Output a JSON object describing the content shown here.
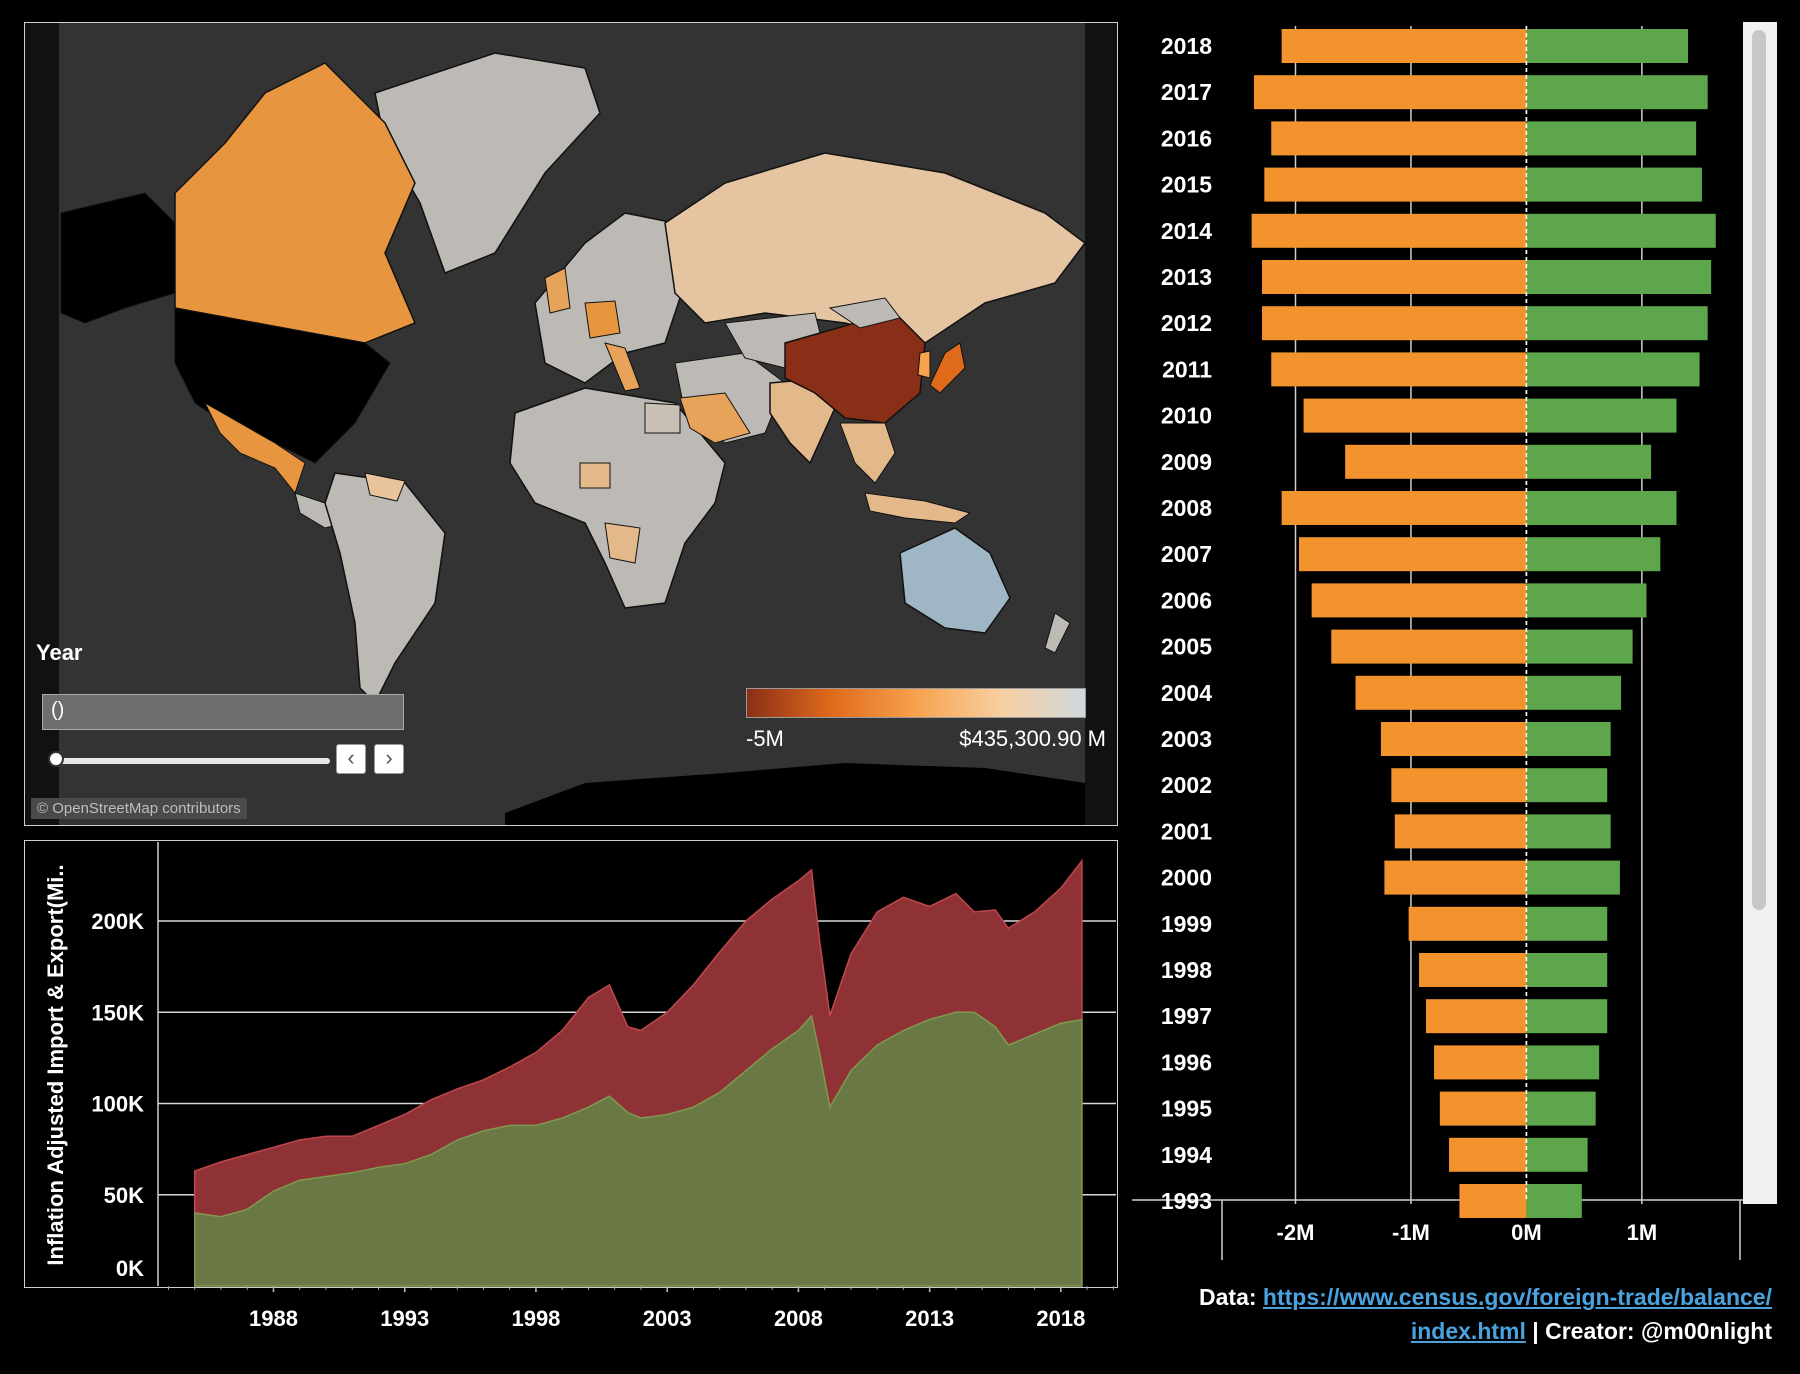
{
  "colors": {
    "export": "#5ea64b",
    "import": "#f2932e",
    "area_import": "#8f3236",
    "area_export": "#6a7845",
    "map_bg": "#333333",
    "china": "#8a2f17",
    "land_neutral": "#bdbab5"
  },
  "map": {
    "credit": "© OpenStreetMap contributors",
    "year_filter": {
      "label": "Year",
      "value": "()",
      "prev_icon": "chevron-left-icon",
      "next_icon": "chevron-right-icon"
    },
    "legend": {
      "min_label": "-5M",
      "max_label": "$435,300.90 M",
      "gradient": [
        "#8a2f17",
        "#e06a1c",
        "#f7a24d",
        "#f8cfa0",
        "#cfd8de"
      ]
    }
  },
  "footer": {
    "data_label": "Data:",
    "url_line1": "https://www.census.gov/foreign-trade/balance/",
    "url_line2": "index.html",
    "separator": "|",
    "creator": "Creator: @m00nlight"
  },
  "chart_data": [
    {
      "type": "bar",
      "orientation": "horizontal",
      "categories": [
        "2018",
        "2017",
        "2016",
        "2015",
        "2014",
        "2013",
        "2012",
        "2011",
        "2010",
        "2009",
        "2008",
        "2007",
        "2006",
        "2005",
        "2004",
        "2003",
        "2002",
        "2001",
        "2000",
        "1999",
        "1998",
        "1997",
        "1996",
        "1995",
        "1994",
        "1993"
      ],
      "series": [
        {
          "values": [
            -2.12,
            -2.36,
            -2.21,
            -2.27,
            -2.38,
            -2.29,
            -2.29,
            -2.21,
            -1.93,
            -1.57,
            -2.12,
            -1.97,
            -1.86,
            -1.69,
            -1.48,
            -1.26,
            -1.17,
            -1.14,
            -1.23,
            -1.02,
            -0.93,
            -0.87,
            -0.8,
            -0.75,
            -0.67,
            -0.58
          ]
        },
        {
          "values": [
            1.4,
            1.57,
            1.47,
            1.52,
            1.64,
            1.6,
            1.57,
            1.5,
            1.3,
            1.08,
            1.3,
            1.16,
            1.04,
            0.92,
            0.82,
            0.73,
            0.7,
            0.73,
            0.81,
            0.7,
            0.7,
            0.7,
            0.63,
            0.6,
            0.53,
            0.48
          ]
        }
      ],
      "xticks": [
        "-2M",
        "-1M",
        "0M",
        "1M"
      ],
      "xtick_values": [
        -2,
        -1,
        0,
        1
      ],
      "xlim": [
        -2.55,
        1.85
      ],
      "units": "M"
    },
    {
      "type": "area",
      "ylabel": "Inflation Adjusted Import & Export(Mi..",
      "yticks": [
        "0K",
        "50K",
        "100K",
        "150K",
        "200K"
      ],
      "ytick_values": [
        0,
        50000,
        100000,
        150000,
        200000
      ],
      "ylim": [
        0,
        240000
      ],
      "xticks": [
        "1988",
        "1993",
        "1998",
        "2003",
        "2008",
        "2013",
        "2018"
      ],
      "xtick_values": [
        1988,
        1993,
        1998,
        2003,
        2008,
        2013,
        2018
      ],
      "xlim": [
        1983.6,
        2020.1
      ],
      "x": [
        1985.0,
        1986.0,
        1987.0,
        1988.0,
        1989.0,
        1990.0,
        1991.0,
        1992.0,
        1993.0,
        1994.0,
        1995.0,
        1996.0,
        1997.0,
        1998.0,
        1999.0,
        2000.0,
        2000.8,
        2001.5,
        2002.0,
        2003.0,
        2004.0,
        2005.0,
        2006.0,
        2007.0,
        2008.0,
        2008.5,
        2008.8,
        2009.2,
        2010.0,
        2011.0,
        2012.0,
        2013.0,
        2014.0,
        2014.7,
        2015.5,
        2016.0,
        2017.0,
        2018.0,
        2018.8
      ],
      "series": [
        {
          "values": [
            63000,
            68000,
            72000,
            76000,
            80000,
            82000,
            82000,
            88000,
            94000,
            102000,
            108000,
            113000,
            120000,
            128000,
            140000,
            158000,
            165000,
            142000,
            140000,
            150000,
            165000,
            183000,
            200000,
            212000,
            222000,
            228000,
            190000,
            148000,
            182000,
            205000,
            213000,
            208000,
            215000,
            205000,
            206000,
            196000,
            205000,
            218000,
            233000
          ]
        },
        {
          "values": [
            40000,
            38000,
            42000,
            52000,
            58000,
            60000,
            62000,
            65000,
            67000,
            72000,
            80000,
            85000,
            88000,
            88000,
            92000,
            98000,
            104000,
            95000,
            92000,
            94000,
            98000,
            106000,
            118000,
            130000,
            140000,
            148000,
            128000,
            98000,
            118000,
            132000,
            140000,
            146000,
            150000,
            150000,
            142000,
            132000,
            138000,
            144000,
            146000
          ]
        }
      ]
    }
  ]
}
